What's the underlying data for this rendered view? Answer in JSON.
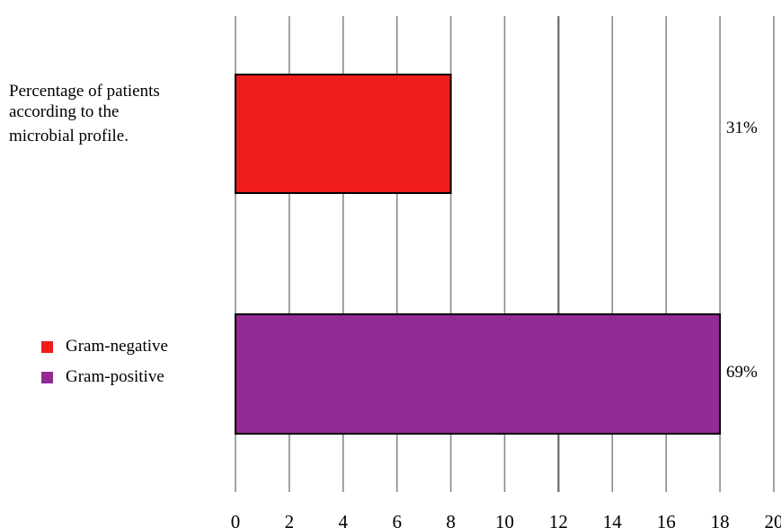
{
  "chart_data": {
    "type": "bar",
    "orientation": "horizontal",
    "title_lines": [
      "Percentage of patients",
      "according to the",
      "microbial profile."
    ],
    "categories": [
      "Gram-negative",
      "Gram-positive"
    ],
    "values": [
      8,
      18
    ],
    "data_labels": [
      "31%",
      "69%"
    ],
    "colors": [
      "#ee1c1c",
      "#922b94"
    ],
    "xlim": [
      0,
      20
    ],
    "x_ticks": [
      "0",
      "2",
      "4",
      "6",
      "8",
      "10",
      "12",
      "14",
      "16",
      "18",
      "20"
    ],
    "grid": true,
    "legend": {
      "placement": "left",
      "entries": [
        {
          "label": "Gram-negative",
          "color": "#ee1c1c"
        },
        {
          "label": "Gram-positive",
          "color": "#922b94"
        }
      ]
    }
  }
}
